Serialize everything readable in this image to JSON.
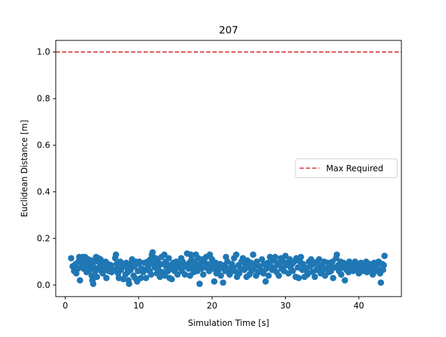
{
  "chart_data": {
    "type": "scatter",
    "title": "207",
    "xlabel": "Simulation Time [s]",
    "ylabel": "Euclidean Distance [m]",
    "xlim": [
      -1.3,
      45.8
    ],
    "ylim": [
      -0.05,
      1.05
    ],
    "x_ticks": [
      0,
      10,
      20,
      30,
      40
    ],
    "y_ticks": [
      0.0,
      0.2,
      0.4,
      0.6,
      0.8,
      1.0
    ],
    "x_tick_labels": [
      "0",
      "10",
      "20",
      "30",
      "40"
    ],
    "y_tick_labels": [
      "0.0",
      "0.2",
      "0.4",
      "0.6",
      "0.8",
      "1.0"
    ],
    "grid": false,
    "legend_position": "center-right",
    "reference_line": {
      "name": "Max Required",
      "y": 1.0,
      "color": "#d62728",
      "style": "dashed"
    },
    "series": [
      {
        "color": "#1f77b4",
        "points": [
          [
            0.8,
            0.115
          ],
          [
            1.0,
            0.08
          ],
          [
            1.2,
            0.06
          ],
          [
            1.4,
            0.09
          ],
          [
            1.5,
            0.05
          ],
          [
            1.7,
            0.07
          ],
          [
            1.8,
            0.1
          ],
          [
            1.9,
            0.12
          ],
          [
            2.0,
            0.02
          ],
          [
            2.1,
            0.11
          ],
          [
            2.3,
            0.085
          ],
          [
            2.4,
            0.12
          ],
          [
            2.5,
            0.07
          ],
          [
            2.6,
            0.11
          ],
          [
            2.7,
            0.12
          ],
          [
            2.8,
            0.095
          ],
          [
            2.9,
            0.055
          ],
          [
            3.0,
            0.08
          ],
          [
            3.1,
            0.11
          ],
          [
            3.3,
            0.065
          ],
          [
            3.4,
            0.09
          ],
          [
            3.5,
            0.105
          ],
          [
            3.6,
            0.04
          ],
          [
            3.7,
            0.02
          ],
          [
            3.8,
            0.005
          ],
          [
            3.9,
            0.075
          ],
          [
            4.0,
            0.1
          ],
          [
            4.1,
            0.06
          ],
          [
            4.2,
            0.12
          ],
          [
            4.3,
            0.035
          ],
          [
            4.5,
            0.115
          ],
          [
            4.6,
            0.075
          ],
          [
            4.7,
            0.095
          ],
          [
            4.8,
            0.11
          ],
          [
            4.9,
            0.06
          ],
          [
            5.0,
            0.1
          ],
          [
            5.1,
            0.05
          ],
          [
            5.3,
            0.085
          ],
          [
            5.4,
            0.07
          ],
          [
            5.5,
            0.1
          ],
          [
            5.6,
            0.03
          ],
          [
            5.8,
            0.09
          ],
          [
            5.9,
            0.06
          ],
          [
            6.0,
            0.075
          ],
          [
            6.2,
            0.085
          ],
          [
            6.3,
            0.055
          ],
          [
            6.5,
            0.06
          ],
          [
            6.7,
            0.065
          ],
          [
            6.8,
            0.115
          ],
          [
            6.9,
            0.13
          ],
          [
            7.0,
            0.09
          ],
          [
            7.1,
            0.07
          ],
          [
            7.2,
            0.05
          ],
          [
            7.3,
            0.03
          ],
          [
            7.5,
            0.1
          ],
          [
            7.6,
            0.065
          ],
          [
            7.8,
            0.08
          ],
          [
            7.9,
            0.025
          ],
          [
            8.0,
            0.09
          ],
          [
            8.2,
            0.045
          ],
          [
            8.3,
            0.095
          ],
          [
            8.4,
            0.075
          ],
          [
            8.5,
            0.055
          ],
          [
            8.6,
            0.02
          ],
          [
            8.7,
            0.005
          ],
          [
            8.8,
            0.09
          ],
          [
            8.9,
            0.065
          ],
          [
            9.1,
            0.11
          ],
          [
            9.3,
            0.04
          ],
          [
            9.4,
            0.08
          ],
          [
            9.5,
            0.03
          ],
          [
            9.6,
            0.1
          ],
          [
            9.8,
            0.015
          ],
          [
            9.9,
            0.06
          ],
          [
            10.0,
            0.09
          ],
          [
            10.1,
            0.1
          ],
          [
            10.3,
            0.03
          ],
          [
            10.4,
            0.07
          ],
          [
            10.6,
            0.055
          ],
          [
            10.8,
            0.095
          ],
          [
            10.9,
            0.065
          ],
          [
            11.0,
            0.03
          ],
          [
            11.2,
            0.1
          ],
          [
            11.3,
            0.08
          ],
          [
            11.5,
            0.06
          ],
          [
            11.6,
            0.11
          ],
          [
            11.7,
            0.045
          ],
          [
            11.8,
            0.13
          ],
          [
            11.9,
            0.14
          ],
          [
            12.0,
            0.09
          ],
          [
            12.2,
            0.075
          ],
          [
            12.3,
            0.115
          ],
          [
            12.5,
            0.05
          ],
          [
            12.6,
            0.1
          ],
          [
            12.7,
            0.065
          ],
          [
            12.8,
            0.085
          ],
          [
            12.9,
            0.035
          ],
          [
            13.1,
            0.12
          ],
          [
            13.2,
            0.055
          ],
          [
            13.3,
            0.09
          ],
          [
            13.5,
            0.13
          ],
          [
            13.6,
            0.04
          ],
          [
            13.7,
            0.1
          ],
          [
            13.8,
            0.075
          ],
          [
            14.0,
            0.06
          ],
          [
            14.1,
            0.115
          ],
          [
            14.2,
            0.03
          ],
          [
            14.3,
            0.085
          ],
          [
            14.5,
            0.025
          ],
          [
            14.6,
            0.07
          ],
          [
            14.7,
            0.095
          ],
          [
            14.9,
            0.06
          ],
          [
            15.0,
            0.08
          ],
          [
            15.1,
            0.1
          ],
          [
            15.3,
            0.045
          ],
          [
            15.4,
            0.075
          ],
          [
            15.6,
            0.09
          ],
          [
            15.8,
            0.115
          ],
          [
            15.9,
            0.06
          ],
          [
            16.0,
            0.1
          ],
          [
            16.2,
            0.08
          ],
          [
            16.3,
            0.045
          ],
          [
            16.5,
            0.085
          ],
          [
            16.6,
            0.135
          ],
          [
            16.8,
            0.07
          ],
          [
            16.9,
            0.095
          ],
          [
            17.0,
            0.04
          ],
          [
            17.1,
            0.13
          ],
          [
            17.2,
            0.11
          ],
          [
            17.4,
            0.075
          ],
          [
            17.5,
            0.055
          ],
          [
            17.6,
            0.1
          ],
          [
            17.8,
            0.13
          ],
          [
            17.9,
            0.085
          ],
          [
            18.0,
            0.06
          ],
          [
            18.1,
            0.115
          ],
          [
            18.3,
            0.005
          ],
          [
            18.4,
            0.09
          ],
          [
            18.5,
            0.07
          ],
          [
            18.7,
            0.11
          ],
          [
            18.8,
            0.045
          ],
          [
            18.9,
            0.1
          ],
          [
            19.1,
            0.075
          ],
          [
            19.2,
            0.12
          ],
          [
            19.4,
            0.09
          ],
          [
            19.6,
            0.06
          ],
          [
            19.7,
            0.13
          ],
          [
            19.8,
            0.085
          ],
          [
            20.0,
            0.11
          ],
          [
            20.2,
            0.07
          ],
          [
            20.3,
            0.015
          ],
          [
            20.5,
            0.095
          ],
          [
            20.6,
            0.05
          ],
          [
            20.8,
            0.08
          ],
          [
            20.9,
            0.065
          ],
          [
            21.1,
            0.09
          ],
          [
            21.2,
            0.04
          ],
          [
            21.4,
            0.075
          ],
          [
            21.5,
            0.01
          ],
          [
            21.7,
            0.085
          ],
          [
            21.8,
            0.06
          ],
          [
            21.9,
            0.12
          ],
          [
            22.1,
            0.1
          ],
          [
            22.2,
            0.07
          ],
          [
            22.4,
            0.045
          ],
          [
            22.5,
            0.055
          ],
          [
            22.7,
            0.09
          ],
          [
            22.9,
            0.075
          ],
          [
            23.0,
            0.115
          ],
          [
            23.1,
            0.06
          ],
          [
            23.3,
            0.13
          ],
          [
            23.4,
            0.035
          ],
          [
            23.6,
            0.085
          ],
          [
            23.7,
            0.05
          ],
          [
            23.9,
            0.07
          ],
          [
            24.0,
            0.1
          ],
          [
            24.2,
            0.115
          ],
          [
            24.4,
            0.065
          ],
          [
            24.5,
            0.09
          ],
          [
            24.7,
            0.035
          ],
          [
            24.8,
            0.105
          ],
          [
            25.0,
            0.075
          ],
          [
            25.1,
            0.045
          ],
          [
            25.3,
            0.095
          ],
          [
            25.4,
            0.06
          ],
          [
            25.6,
            0.13
          ],
          [
            25.7,
            0.07
          ],
          [
            25.9,
            0.085
          ],
          [
            26.0,
            0.04
          ],
          [
            26.1,
            0.1
          ],
          [
            26.3,
            0.055
          ],
          [
            26.5,
            0.08
          ],
          [
            26.6,
            0.065
          ],
          [
            26.8,
            0.11
          ],
          [
            27.0,
            0.05
          ],
          [
            27.1,
            0.09
          ],
          [
            27.3,
            0.015
          ],
          [
            27.4,
            0.07
          ],
          [
            27.6,
            0.095
          ],
          [
            27.7,
            0.04
          ],
          [
            27.9,
            0.12
          ],
          [
            28.0,
            0.08
          ],
          [
            28.2,
            0.065
          ],
          [
            28.3,
            0.105
          ],
          [
            28.5,
            0.075
          ],
          [
            28.6,
            0.12
          ],
          [
            28.8,
            0.055
          ],
          [
            28.9,
            0.095
          ],
          [
            29.1,
            0.04
          ],
          [
            29.2,
            0.085
          ],
          [
            29.4,
            0.115
          ],
          [
            29.5,
            0.07
          ],
          [
            29.7,
            0.1
          ],
          [
            29.8,
            0.06
          ],
          [
            30.0,
            0.125
          ],
          [
            30.1,
            0.085
          ],
          [
            30.3,
            0.095
          ],
          [
            30.4,
            0.05
          ],
          [
            30.6,
            0.11
          ],
          [
            30.7,
            0.075
          ],
          [
            30.9,
            0.09
          ],
          [
            31.0,
            0.06
          ],
          [
            31.2,
            0.1
          ],
          [
            31.4,
            0.035
          ],
          [
            31.5,
            0.115
          ],
          [
            31.7,
            0.075
          ],
          [
            31.8,
            0.03
          ],
          [
            32.0,
            0.1
          ],
          [
            32.1,
            0.12
          ],
          [
            32.3,
            0.065
          ],
          [
            32.4,
            0.09
          ],
          [
            32.6,
            0.035
          ],
          [
            32.7,
            0.075
          ],
          [
            32.9,
            0.06
          ],
          [
            33.0,
            0.045
          ],
          [
            33.2,
            0.1
          ],
          [
            33.4,
            0.08
          ],
          [
            33.5,
            0.11
          ],
          [
            33.7,
            0.055
          ],
          [
            33.8,
            0.09
          ],
          [
            34.0,
            0.035
          ],
          [
            34.2,
            0.065
          ],
          [
            34.3,
            0.1
          ],
          [
            34.5,
            0.075
          ],
          [
            34.6,
            0.11
          ],
          [
            34.8,
            0.05
          ],
          [
            35.0,
            0.085
          ],
          [
            35.1,
            0.065
          ],
          [
            35.3,
            0.1
          ],
          [
            35.4,
            0.04
          ],
          [
            35.6,
            0.07
          ],
          [
            35.8,
            0.095
          ],
          [
            35.9,
            0.055
          ],
          [
            36.1,
            0.085
          ],
          [
            36.2,
            0.06
          ],
          [
            36.4,
            0.1
          ],
          [
            36.5,
            0.03
          ],
          [
            36.7,
            0.075
          ],
          [
            36.9,
            0.115
          ],
          [
            37.0,
            0.13
          ],
          [
            37.2,
            0.085
          ],
          [
            37.3,
            0.06
          ],
          [
            37.5,
            0.1
          ],
          [
            37.6,
            0.045
          ],
          [
            37.8,
            0.075
          ],
          [
            37.9,
            0.095
          ],
          [
            38.1,
            0.02
          ],
          [
            38.3,
            0.065
          ],
          [
            38.4,
            0.085
          ],
          [
            38.6,
            0.055
          ],
          [
            38.7,
            0.1
          ],
          [
            38.9,
            0.07
          ],
          [
            39.1,
            0.09
          ],
          [
            39.2,
            0.06
          ],
          [
            39.4,
            0.08
          ],
          [
            39.5,
            0.1
          ],
          [
            39.7,
            0.065
          ],
          [
            39.9,
            0.085
          ],
          [
            40.0,
            0.05
          ],
          [
            40.2,
            0.075
          ],
          [
            40.3,
            0.095
          ],
          [
            40.5,
            0.06
          ],
          [
            40.7,
            0.085
          ],
          [
            40.8,
            0.07
          ],
          [
            41.0,
            0.1
          ],
          [
            41.1,
            0.055
          ],
          [
            41.3,
            0.08
          ],
          [
            41.5,
            0.09
          ],
          [
            41.6,
            0.065
          ],
          [
            41.8,
            0.075
          ],
          [
            41.9,
            0.045
          ],
          [
            42.1,
            0.095
          ],
          [
            42.3,
            0.06
          ],
          [
            42.4,
            0.08
          ],
          [
            42.6,
            0.07
          ],
          [
            42.7,
            0.1
          ],
          [
            42.9,
            0.05
          ],
          [
            43.0,
            0.01
          ],
          [
            43.2,
            0.09
          ],
          [
            43.3,
            0.065
          ],
          [
            43.5,
            0.125
          ],
          [
            43.4,
            0.085
          ]
        ]
      }
    ]
  }
}
